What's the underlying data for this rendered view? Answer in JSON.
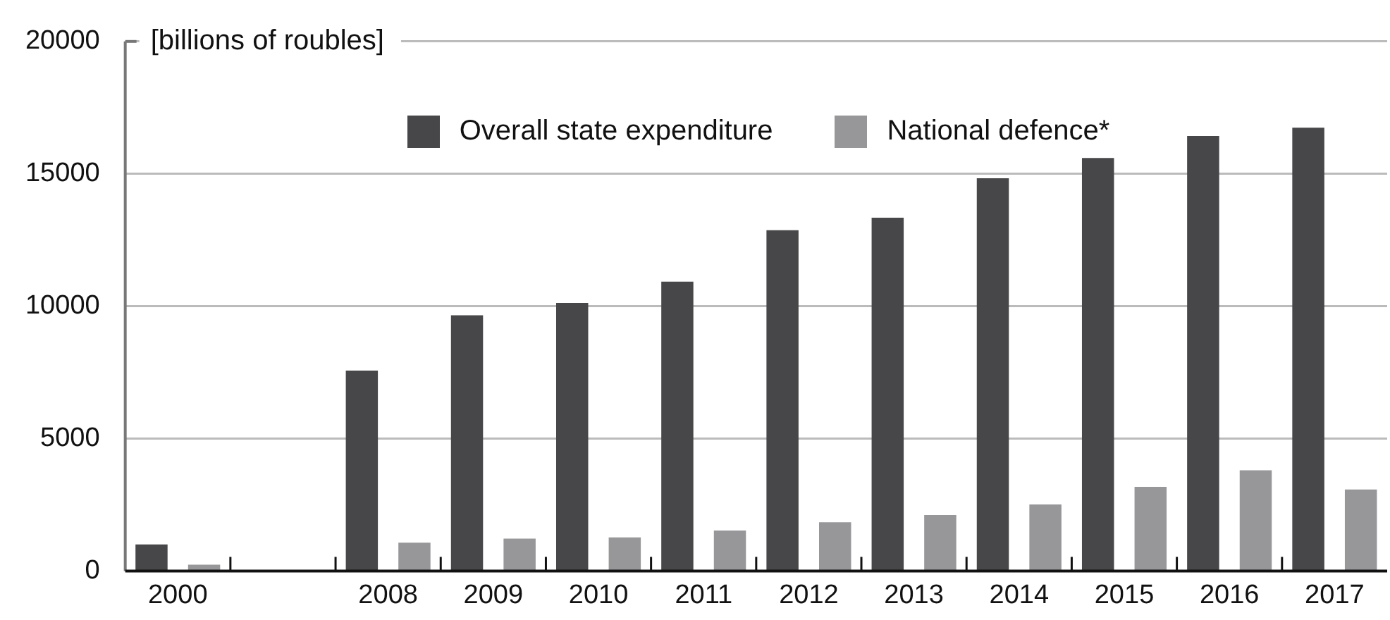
{
  "chart_data": {
    "type": "bar",
    "ylabel": "[billions of roubles]",
    "categories": [
      "2000",
      null,
      "2008",
      "2009",
      "2010",
      "2011",
      "2012",
      "2013",
      "2014",
      "2015",
      "2016",
      "2017"
    ],
    "series": [
      {
        "name": "Overall state expenditure",
        "color": "#474749",
        "values": [
          1000,
          null,
          7570,
          9660,
          10120,
          10930,
          12870,
          13340,
          14830,
          15600,
          16430,
          16740
        ]
      },
      {
        "name": "National defence*",
        "color": "#97979a",
        "values": [
          240,
          null,
          1070,
          1220,
          1270,
          1530,
          1840,
          2110,
          2510,
          3180,
          3800,
          3080
        ]
      }
    ],
    "ylim": [
      0,
      20000
    ],
    "yticks": [
      0,
      5000,
      10000,
      15000,
      20000
    ],
    "grid": "y",
    "legend": "top"
  }
}
